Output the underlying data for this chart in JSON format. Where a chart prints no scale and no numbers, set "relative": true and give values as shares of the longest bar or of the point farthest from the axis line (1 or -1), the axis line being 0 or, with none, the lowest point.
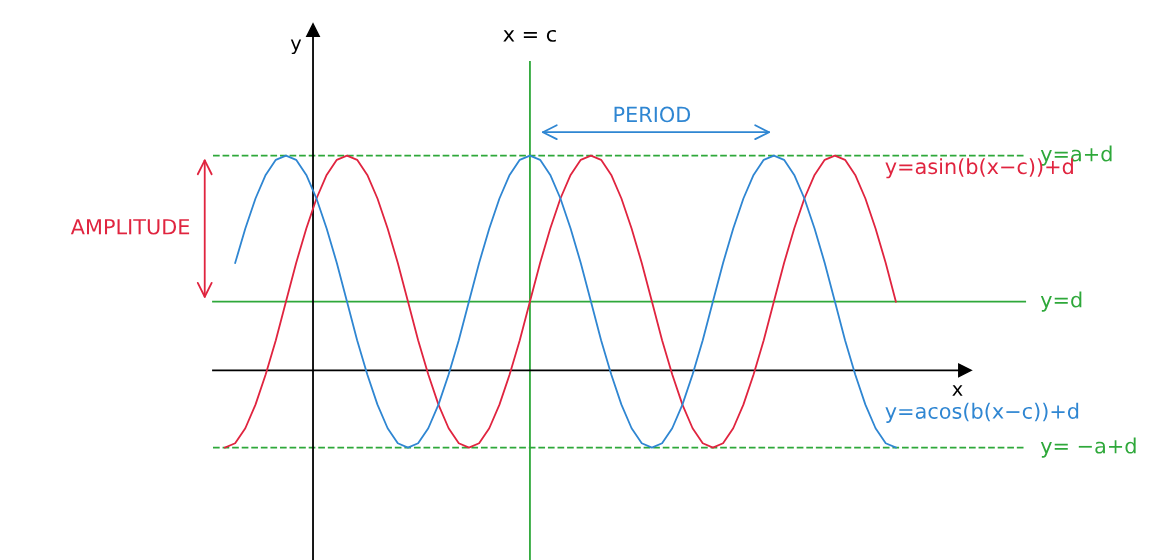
{
  "chart_data": {
    "type": "line",
    "relative": true,
    "xlabel": "x",
    "categories": [
      null,
      null,
      null,
      null,
      null,
      null,
      null,
      null,
      null,
      null,
      null,
      null,
      null,
      null,
      null,
      null,
      null,
      null,
      null,
      null,
      null,
      null,
      null,
      null,
      null,
      null,
      null,
      null,
      null,
      null,
      null,
      null,
      null,
      null,
      null,
      null,
      null,
      null,
      null,
      null,
      null,
      null,
      null,
      null,
      null,
      null,
      null,
      null,
      null,
      null,
      null,
      null,
      null,
      null,
      null,
      null,
      null,
      null,
      null,
      null,
      null,
      null,
      null,
      null,
      null,
      null,
      null
    ],
    "series": [
      {
        "name": "y=asin(b(x−c))+d",
        "color": "#e0243f",
        "values": [
          -0.36,
          -0.34,
          -0.27,
          -0.16,
          -0.02,
          0.14,
          0.32,
          0.5,
          0.66,
          0.8,
          0.91,
          0.98,
          1.0,
          0.98,
          0.91,
          0.8,
          0.66,
          0.5,
          0.32,
          0.14,
          -0.02,
          -0.16,
          -0.27,
          -0.34,
          -0.36,
          -0.34,
          -0.27,
          -0.16,
          -0.02,
          0.14,
          0.32,
          0.5,
          0.66,
          0.8,
          0.91,
          0.98,
          1.0,
          0.98,
          0.91,
          0.8,
          0.66,
          0.5,
          0.32,
          0.14,
          -0.02,
          -0.16,
          -0.27,
          -0.34,
          -0.36,
          -0.34,
          -0.27,
          -0.16,
          -0.02,
          0.14,
          0.32,
          0.5,
          0.66,
          0.8,
          0.91,
          0.98,
          1.0,
          0.98,
          0.91,
          0.8,
          0.66,
          0.5,
          0.32
        ]
      },
      {
        "name": "y=acos(b(x−c))+d",
        "color": "#2f86d2",
        "values": [
          null,
          0.5,
          0.66,
          0.8,
          0.91,
          0.98,
          1.0,
          0.98,
          0.91,
          0.8,
          0.66,
          0.5,
          0.32,
          0.14,
          -0.02,
          -0.16,
          -0.27,
          -0.34,
          -0.36,
          -0.34,
          -0.27,
          -0.16,
          -0.02,
          0.14,
          0.32,
          0.5,
          0.66,
          0.8,
          0.91,
          0.98,
          1.0,
          0.98,
          0.91,
          0.8,
          0.66,
          0.5,
          0.32,
          0.14,
          -0.02,
          -0.16,
          -0.27,
          -0.34,
          -0.36,
          -0.34,
          -0.27,
          -0.16,
          -0.02,
          0.14,
          0.32,
          0.5,
          0.66,
          0.8,
          0.91,
          0.98,
          1.0,
          0.98,
          0.91,
          0.8,
          0.66,
          0.5,
          0.32,
          0.14,
          -0.02,
          -0.16,
          -0.27,
          -0.34,
          -0.36
        ]
      }
    ],
    "ref_lines": [
      {
        "axis": "y",
        "value": 1.0,
        "label": "y=a+d",
        "color": "#2ea83a",
        "line_style": "dashed"
      },
      {
        "axis": "y",
        "value": 0.32,
        "label": "y=d",
        "color": "#2ea83a",
        "line_style": "solid"
      },
      {
        "axis": "y",
        "value": -0.36,
        "label": "y= −a+d",
        "color": "#2ea83a",
        "line_style": "dashed"
      },
      {
        "axis": "x",
        "label": "x = c",
        "color": "#2ea83a",
        "line_style": "solid"
      }
    ],
    "annotations": [
      "AMPLITUDE",
      "PERIOD",
      "y"
    ]
  }
}
